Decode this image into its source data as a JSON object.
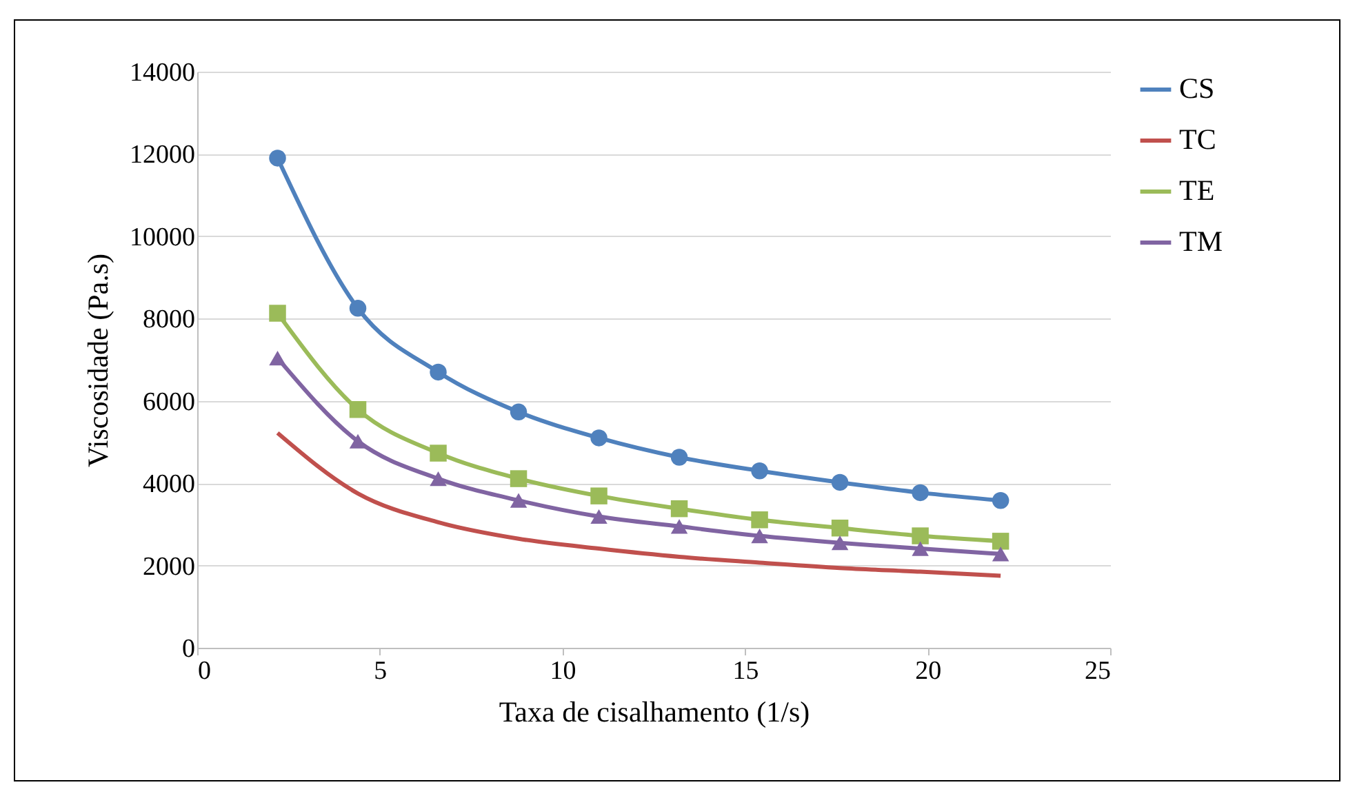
{
  "chart_data": {
    "type": "line",
    "xlabel": "Taxa de cisalhamento (1/s)",
    "ylabel": "Viscosidade (Pa.s)",
    "x": [
      2.2,
      4.4,
      6.6,
      8.8,
      11,
      13.2,
      15.4,
      17.6,
      19.8,
      22
    ],
    "series": [
      {
        "name": "CS",
        "color": "#4f81bd",
        "marker": "circle",
        "values": [
          11900,
          8250,
          6700,
          5730,
          5100,
          4630,
          4300,
          4020,
          3770,
          3580
        ]
      },
      {
        "name": "TC",
        "color": "#c0504d",
        "marker": "none",
        "values": [
          5220,
          3750,
          3050,
          2650,
          2410,
          2210,
          2070,
          1940,
          1850,
          1750
        ]
      },
      {
        "name": "TE",
        "color": "#9bbb59",
        "marker": "square",
        "values": [
          8130,
          5790,
          4730,
          4110,
          3690,
          3380,
          3110,
          2910,
          2720,
          2590
        ]
      },
      {
        "name": "TM",
        "color": "#8064a2",
        "marker": "triangle",
        "values": [
          7040,
          5020,
          4110,
          3580,
          3190,
          2950,
          2720,
          2550,
          2410,
          2280
        ]
      }
    ],
    "xlim": [
      0,
      25
    ],
    "xticks": [
      0,
      5,
      10,
      15,
      20,
      25
    ],
    "ylim": [
      0,
      14000
    ],
    "yticks": [
      0,
      2000,
      4000,
      6000,
      8000,
      10000,
      12000,
      14000
    ],
    "grid": "y",
    "legend": "right",
    "line_style": "solid"
  }
}
